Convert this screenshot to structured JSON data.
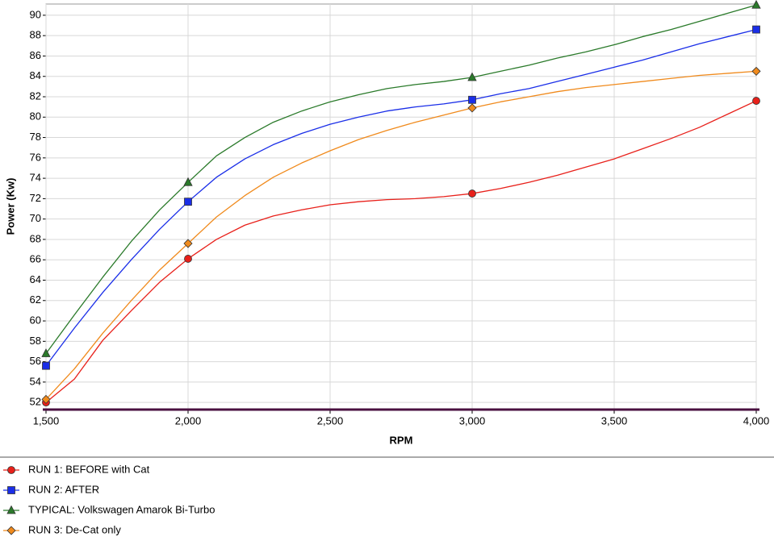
{
  "chart_data": {
    "type": "line",
    "x_label": "RPM",
    "y_label": "Power (Kw)",
    "x": [
      1500,
      1600,
      1700,
      1800,
      1900,
      2000,
      2100,
      2200,
      2300,
      2400,
      2500,
      2600,
      2700,
      2800,
      2900,
      3000,
      3100,
      3200,
      3300,
      3400,
      3500,
      3600,
      3700,
      3800,
      3900,
      4000
    ],
    "marker_x": [
      1500,
      2000,
      3000,
      4000
    ],
    "series": [
      {
        "name": "RUN 1: BEFORE with Cat",
        "color": "#e8201a",
        "marker": "circle",
        "values": [
          52.0,
          54.3,
          58.1,
          61.0,
          63.8,
          66.1,
          68.0,
          69.4,
          70.3,
          70.9,
          71.4,
          71.7,
          71.9,
          72.0,
          72.2,
          72.5,
          73.0,
          73.6,
          74.3,
          75.1,
          75.9,
          76.9,
          77.9,
          79.0,
          80.3,
          81.6
        ]
      },
      {
        "name": "RUN 2: AFTER",
        "color": "#1a2ee8",
        "marker": "square",
        "values": [
          55.6,
          59.3,
          62.8,
          66.0,
          69.0,
          71.7,
          74.1,
          75.9,
          77.3,
          78.4,
          79.3,
          80.0,
          80.6,
          81.0,
          81.3,
          81.7,
          82.3,
          82.8,
          83.5,
          84.2,
          84.9,
          85.6,
          86.4,
          87.2,
          87.9,
          88.6
        ]
      },
      {
        "name": "TYPICAL: Volkswagen Amarok Bi-Turbo",
        "color": "#2a7a2a",
        "marker": "triangle",
        "values": [
          56.8,
          60.6,
          64.3,
          67.8,
          70.9,
          73.6,
          76.2,
          78.0,
          79.5,
          80.6,
          81.5,
          82.2,
          82.8,
          83.2,
          83.5,
          83.9,
          84.5,
          85.1,
          85.8,
          86.4,
          87.1,
          87.9,
          88.6,
          89.4,
          90.2,
          91.0
        ]
      },
      {
        "name": "RUN 3: De-Cat only",
        "color": "#f08a1c",
        "marker": "diamond",
        "values": [
          52.3,
          55.3,
          58.8,
          62.0,
          65.0,
          67.6,
          70.2,
          72.3,
          74.1,
          75.5,
          76.7,
          77.8,
          78.7,
          79.5,
          80.2,
          80.9,
          81.5,
          82.0,
          82.5,
          82.9,
          83.2,
          83.5,
          83.8,
          84.1,
          84.3,
          84.5
        ]
      }
    ],
    "xlim": [
      1500,
      4000
    ],
    "xticks": [
      {
        "value": 1500,
        "label": "1,500"
      },
      {
        "value": 2000,
        "label": "2,000"
      },
      {
        "value": 2500,
        "label": "2,500"
      },
      {
        "value": 3000,
        "label": "3,000"
      },
      {
        "value": 3500,
        "label": "3,500"
      },
      {
        "value": 4000,
        "label": "4,000"
      }
    ],
    "ylim": [
      51.3,
      91.1
    ],
    "yticks": [
      52,
      54,
      56,
      58,
      60,
      62,
      64,
      66,
      68,
      70,
      72,
      74,
      76,
      78,
      80,
      82,
      84,
      86,
      88,
      90
    ],
    "grid": true
  }
}
